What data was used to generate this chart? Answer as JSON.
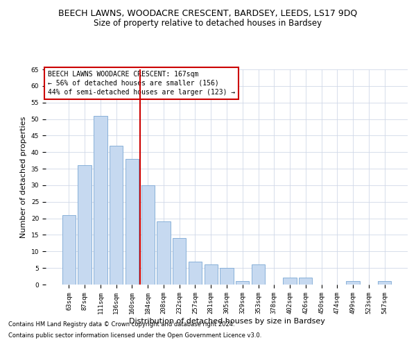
{
  "title": "BEECH LAWNS, WOODACRE CRESCENT, BARDSEY, LEEDS, LS17 9DQ",
  "subtitle": "Size of property relative to detached houses in Bardsey",
  "xlabel": "Distribution of detached houses by size in Bardsey",
  "ylabel": "Number of detached properties",
  "bar_labels": [
    "63sqm",
    "87sqm",
    "111sqm",
    "136sqm",
    "160sqm",
    "184sqm",
    "208sqm",
    "232sqm",
    "257sqm",
    "281sqm",
    "305sqm",
    "329sqm",
    "353sqm",
    "378sqm",
    "402sqm",
    "426sqm",
    "450sqm",
    "474sqm",
    "499sqm",
    "523sqm",
    "547sqm"
  ],
  "bar_values": [
    21,
    36,
    51,
    42,
    38,
    30,
    19,
    14,
    7,
    6,
    5,
    1,
    6,
    0,
    2,
    2,
    0,
    0,
    1,
    0,
    1
  ],
  "bar_color": "#c6d9f0",
  "bar_edge_color": "#7ba7d4",
  "grid_color": "#d0d8e8",
  "vline_x": 4.5,
  "vline_color": "#cc0000",
  "annotation_text": "BEECH LAWNS WOODACRE CRESCENT: 167sqm\n← 56% of detached houses are smaller (156)\n44% of semi-detached houses are larger (123) →",
  "annotation_box_color": "#ffffff",
  "annotation_box_edge": "#cc0000",
  "ylim": [
    0,
    65
  ],
  "yticks": [
    0,
    5,
    10,
    15,
    20,
    25,
    30,
    35,
    40,
    45,
    50,
    55,
    60,
    65
  ],
  "footnote1": "Contains HM Land Registry data © Crown copyright and database right 2024.",
  "footnote2": "Contains public sector information licensed under the Open Government Licence v3.0.",
  "bg_color": "#ffffff",
  "title_fontsize": 9,
  "subtitle_fontsize": 8.5,
  "tick_fontsize": 6.5,
  "label_fontsize": 8,
  "footnote_fontsize": 6
}
